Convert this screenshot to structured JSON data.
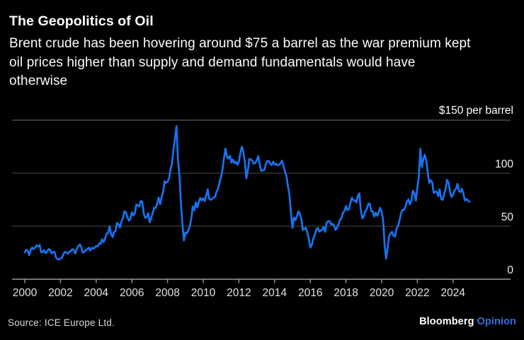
{
  "header": {
    "title": "The Geopolitics of Oil",
    "subtitle": "Brent crude has been hovering around $75 a barrel as the war premium kept oil prices higher than supply and demand fundamentals would have otherwise",
    "subtitle_lines": [
      "Brent crude has been hovering around $75 a barrel as the war premium kept",
      "oil prices higher than supply and demand fundamentals would have",
      "otherwise"
    ]
  },
  "chart_data": {
    "type": "line",
    "title": "The Geopolitics of Oil",
    "y_axis_top_label": "$150 per barrel",
    "y_tick_labels": [
      0,
      50,
      100
    ],
    "ylim": [
      0,
      150
    ],
    "x_tick_years": [
      2000,
      2002,
      2004,
      2006,
      2008,
      2010,
      2012,
      2014,
      2016,
      2018,
      2020,
      2022,
      2024
    ],
    "grid": "horizontal",
    "legend": "none",
    "line_color": "#1673f1",
    "gridline_color": "#3c3c3c",
    "top_gridline_color": "#5a5a5a",
    "axis_color": "#9b9b9b",
    "series": [
      {
        "name": "Brent crude price",
        "unit": "$ per barrel",
        "frequency": "monthly",
        "start": "2000-01",
        "end": "2024-12",
        "values": [
          25.5,
          27.8,
          26.7,
          22.8,
          27.7,
          29.8,
          28.4,
          30.1,
          32.1,
          30.9,
          32.3,
          25.5,
          25.6,
          27.5,
          24.5,
          25.9,
          28.4,
          27.8,
          24.5,
          25.6,
          25.7,
          20.4,
          18.8,
          18.7,
          19.4,
          20.3,
          23.7,
          25.7,
          25.4,
          24.1,
          25.8,
          26.6,
          28.4,
          27.5,
          24.3,
          28.3,
          31.3,
          32.7,
          30.4,
          24.9,
          25.8,
          27.5,
          28.3,
          29.8,
          27.1,
          29.6,
          28.8,
          29.8,
          31.3,
          30.9,
          33.8,
          33.3,
          37.6,
          35.1,
          38.3,
          43.0,
          43.3,
          49.8,
          43.1,
          39.6,
          44.5,
          45.5,
          53.1,
          51.9,
          48.6,
          54.4,
          57.5,
          64.1,
          62.9,
          58.5,
          55.2,
          56.9,
          63.1,
          60.2,
          62.1,
          70.4,
          69.8,
          68.6,
          73.7,
          73.2,
          61.7,
          57.8,
          58.9,
          62.2,
          53.7,
          57.6,
          62.1,
          67.5,
          67.2,
          71.1,
          77.0,
          70.8,
          77.2,
          82.3,
          92.4,
          91.0,
          92.0,
          95.0,
          103.6,
          109.0,
          122.7,
          132.3,
          144.5,
          113.0,
          98.1,
          71.9,
          52.5,
          36.6,
          43.9,
          43.3,
          46.5,
          50.2,
          57.3,
          68.6,
          64.9,
          72.5,
          67.7,
          72.8,
          76.7,
          74.5,
          76.2,
          73.7,
          78.8,
          84.8,
          76.0,
          74.8,
          75.6,
          77.1,
          77.8,
          82.7,
          85.3,
          91.4,
          96.5,
          103.7,
          114.6,
          123.3,
          115.0,
          113.8,
          116.5,
          110.1,
          112.8,
          109.5,
          110.7,
          107.9,
          110.7,
          119.3,
          125.0,
          119.7,
          110.3,
          95.2,
          102.6,
          113.4,
          112.9,
          111.7,
          109.1,
          109.5,
          112.3,
          116.1,
          108.5,
          102.2,
          102.6,
          102.9,
          107.9,
          111.3,
          111.6,
          109.1,
          107.8,
          110.8,
          108.1,
          108.9,
          107.5,
          107.8,
          109.5,
          111.8,
          106.8,
          101.6,
          97.1,
          87.4,
          79.4,
          62.3,
          48.4,
          58.1,
          55.9,
          59.5,
          64.1,
          61.5,
          56.6,
          46.5,
          47.6,
          48.4,
          44.3,
          38.0,
          29.8,
          32.2,
          38.2,
          41.6,
          46.7,
          48.3,
          44.9,
          45.8,
          46.6,
          49.5,
          44.7,
          53.3,
          54.6,
          54.9,
          51.6,
          52.3,
          50.3,
          46.4,
          48.5,
          51.7,
          56.2,
          57.5,
          62.7,
          64.4,
          69.1,
          65.3,
          66.0,
          72.1,
          76.9,
          74.4,
          74.2,
          72.5,
          78.9,
          81.0,
          64.8,
          57.4,
          59.4,
          64.0,
          66.1,
          71.2,
          71.3,
          64.2,
          63.9,
          59.0,
          62.8,
          59.7,
          63.2,
          67.3,
          63.7,
          55.7,
          32.0,
          19.5,
          29.4,
          40.8,
          43.2,
          44.7,
          40.9,
          40.2,
          47.6,
          50.2,
          55.3,
          62.3,
          65.4,
          65.3,
          68.3,
          73.4,
          75.2,
          70.5,
          74.5,
          83.5,
          80.9,
          74.2,
          86.5,
          97.1,
          123.0,
          105.9,
          113.3,
          117.5,
          111.9,
          100.4,
          90.7,
          93.3,
          91.4,
          81.5,
          82.5,
          82.6,
          78.4,
          84.6,
          75.7,
          74.8,
          80.1,
          85.2,
          93.7,
          91.1,
          82.0,
          77.6,
          80.1,
          83.5,
          85.4,
          89.9,
          83.0,
          82.2,
          85.3,
          80.4,
          74.3,
          75.6,
          74.3,
          73.1
        ]
      }
    ]
  },
  "footer": {
    "source": "Source: ICE Europe Ltd.",
    "brand": "Bloomberg",
    "brand_suffix": "Opinion"
  }
}
